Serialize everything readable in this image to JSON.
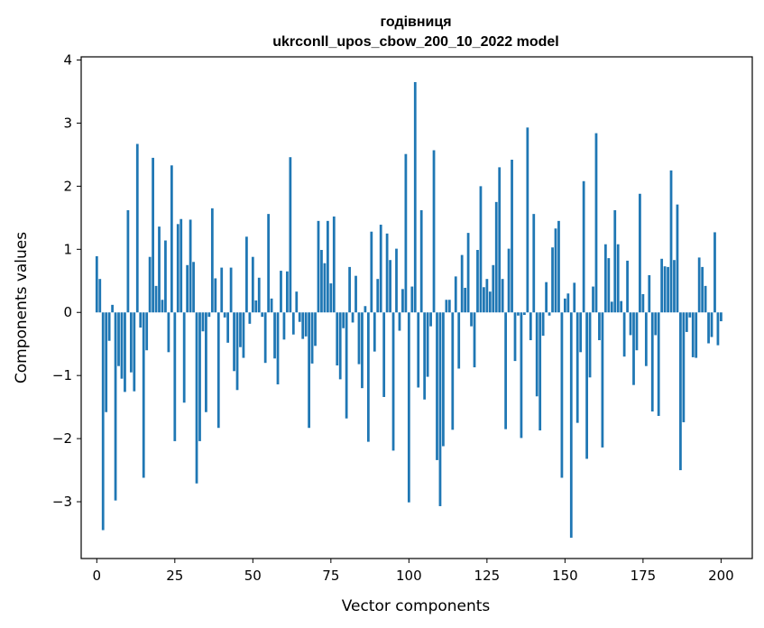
{
  "chart_data": {
    "type": "bar",
    "title_line1": "годівниця",
    "title_line2": "ukrconll_upos_cbow_200_10_2022 model",
    "xlabel": "Vector components",
    "ylabel": "Components values",
    "xlim": [
      -5,
      210
    ],
    "ylim": [
      -3.9,
      4.05
    ],
    "xticks": [
      0,
      25,
      50,
      75,
      100,
      125,
      150,
      175,
      200
    ],
    "xtick_labels": [
      "0",
      "25",
      "50",
      "75",
      "100",
      "125",
      "150",
      "175",
      "200"
    ],
    "yticks": [
      -3,
      -2,
      -1,
      0,
      1,
      2,
      3,
      4
    ],
    "ytick_labels": [
      "−3",
      "−2",
      "−1",
      "0",
      "1",
      "2",
      "3",
      "4"
    ],
    "bar_color": "#1f77b4",
    "grid": false,
    "legend": false,
    "values": [
      0.89,
      0.53,
      -3.45,
      -1.58,
      -0.45,
      0.12,
      -2.98,
      -0.85,
      -1.05,
      -1.26,
      1.62,
      -0.95,
      -1.25,
      2.67,
      -0.24,
      -2.62,
      -0.6,
      0.88,
      2.45,
      0.42,
      1.36,
      0.2,
      1.14,
      -0.63,
      2.33,
      -2.04,
      1.4,
      1.48,
      -1.43,
      0.75,
      1.47,
      0.8,
      -2.71,
      -2.04,
      -0.3,
      -1.58,
      -0.07,
      1.65,
      0.54,
      -1.83,
      0.71,
      -0.08,
      -0.48,
      0.71,
      -0.93,
      -1.23,
      -0.55,
      -0.72,
      1.2,
      -0.18,
      0.88,
      0.19,
      0.55,
      -0.07,
      -0.8,
      1.56,
      0.22,
      -0.73,
      -1.14,
      0.66,
      -0.43,
      0.65,
      2.46,
      -0.35,
      0.33,
      -0.15,
      -0.42,
      -0.38,
      -1.83,
      -0.81,
      -0.53,
      1.45,
      0.99,
      0.78,
      1.45,
      0.46,
      1.52,
      -0.84,
      -1.06,
      -0.25,
      -1.68,
      0.72,
      -0.16,
      0.58,
      -0.82,
      -1.2,
      0.1,
      -2.05,
      1.28,
      -0.62,
      0.53,
      1.39,
      -1.34,
      1.25,
      0.83,
      -2.19,
      1.01,
      -0.29,
      0.37,
      2.51,
      -3.01,
      0.41,
      3.65,
      -1.19,
      1.62,
      -1.38,
      -1.02,
      -0.22,
      2.57,
      -2.34,
      -3.07,
      -2.12,
      0.2,
      0.2,
      -1.86,
      0.57,
      -0.89,
      0.91,
      0.39,
      1.26,
      -0.22,
      -0.87,
      0.99,
      2.0,
      0.4,
      0.53,
      0.33,
      0.75,
      1.75,
      2.3,
      0.53,
      -1.85,
      1.01,
      2.42,
      -0.77,
      -0.05,
      -1.99,
      -0.04,
      2.93,
      -0.44,
      1.56,
      -1.33,
      -1.87,
      -0.37,
      0.48,
      -0.05,
      1.03,
      1.33,
      1.45,
      -2.62,
      0.22,
      0.3,
      -3.57,
      0.47,
      -1.75,
      -0.63,
      2.08,
      -2.32,
      -1.03,
      0.41,
      2.84,
      -0.44,
      -2.14,
      1.08,
      0.86,
      0.17,
      1.62,
      1.08,
      0.18,
      -0.7,
      0.82,
      -0.36,
      -1.15,
      -0.6,
      1.88,
      0.29,
      -0.85,
      0.59,
      -1.57,
      -0.36,
      -1.64,
      0.85,
      0.73,
      0.72,
      2.25,
      0.83,
      1.71,
      -2.5,
      -1.74,
      -0.31,
      -0.08,
      -0.71,
      -0.72,
      0.87,
      0.72,
      0.42,
      -0.49,
      -0.39,
      1.27,
      -0.52,
      -0.14
    ]
  }
}
